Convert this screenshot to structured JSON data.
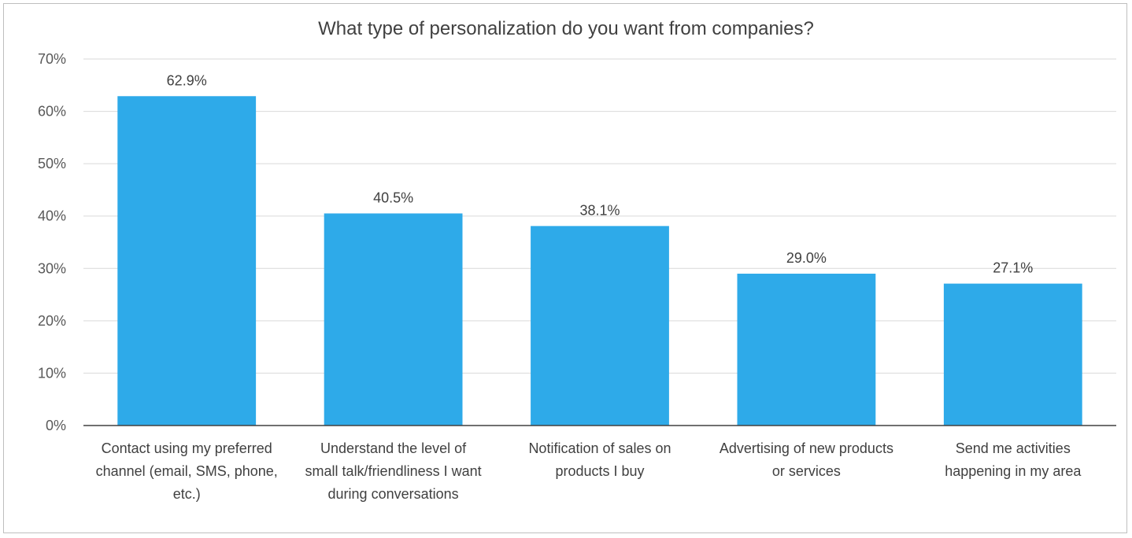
{
  "chart_data": {
    "type": "bar",
    "title": "What type of personalization do you want from companies?",
    "categories": [
      "Contact using my preferred channel (email, SMS, phone, etc.)",
      "Understand the level of small talk/friendliness I want during conversations",
      "Notification of sales on products I buy",
      "Advertising of new products or services",
      "Send me activities happening in my area"
    ],
    "category_lines": [
      [
        "Contact using my preferred",
        "channel (email, SMS, phone,",
        "etc.)"
      ],
      [
        "Understand the level of",
        "small talk/friendliness I want",
        "during conversations"
      ],
      [
        "Notification of sales on",
        "products I buy"
      ],
      [
        "Advertising of new products",
        "or services"
      ],
      [
        "Send me activities",
        "happening in my area"
      ]
    ],
    "values": [
      62.9,
      40.5,
      38.1,
      29.0,
      27.1
    ],
    "data_labels": [
      "62.9%",
      "40.5%",
      "38.1%",
      "29.0%",
      "27.1%"
    ],
    "yticks": [
      "0%",
      "10%",
      "20%",
      "30%",
      "40%",
      "50%",
      "60%",
      "70%"
    ],
    "ylim": [
      0,
      70
    ],
    "xlabel": "",
    "ylabel": "",
    "grid": true,
    "bar_color": "#2EAAE9",
    "grid_color": "#d9d9d9",
    "axis_color": "#404040"
  }
}
